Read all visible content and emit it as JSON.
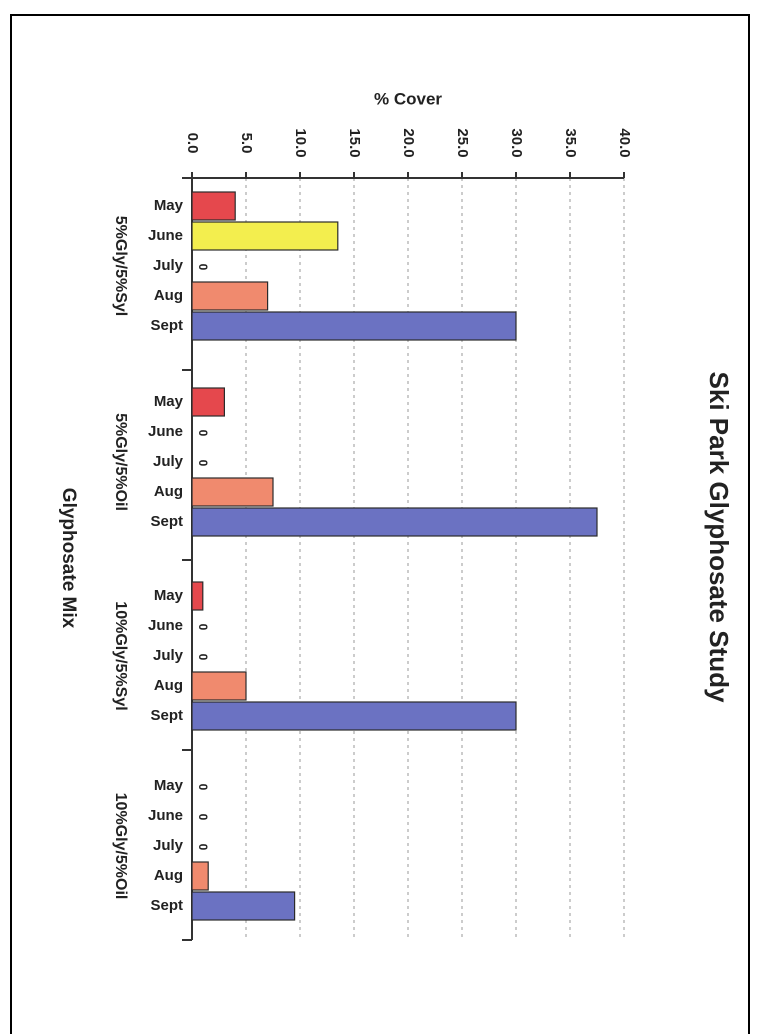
{
  "chart_data": {
    "type": "bar",
    "orientation": "horizontal",
    "title": "Ski Park Glyphosate Study",
    "xlabel": "Glyphosate Mix",
    "ylabel": "% Cover",
    "ylim": [
      0,
      40
    ],
    "ticks": [
      "0.0",
      "5.0",
      "10.0",
      "15.0",
      "20.0",
      "25.0",
      "30.0",
      "35.0",
      "40.0"
    ],
    "grid": true,
    "groups": [
      {
        "name": "5%Gly/5%Syl",
        "bars": [
          {
            "month": "May",
            "value": 4.0
          },
          {
            "month": "June",
            "value": 13.5
          },
          {
            "month": "July",
            "value": 0
          },
          {
            "month": "Aug",
            "value": 7.0
          },
          {
            "month": "Sept",
            "value": 30.0
          }
        ]
      },
      {
        "name": "5%Gly/5%Oil",
        "bars": [
          {
            "month": "May",
            "value": 3.0
          },
          {
            "month": "June",
            "value": 0
          },
          {
            "month": "July",
            "value": 0
          },
          {
            "month": "Aug",
            "value": 7.5
          },
          {
            "month": "Sept",
            "value": 37.5
          }
        ]
      },
      {
        "name": "10%Gly/5%Syl",
        "bars": [
          {
            "month": "May",
            "value": 1.0
          },
          {
            "month": "June",
            "value": 0
          },
          {
            "month": "July",
            "value": 0
          },
          {
            "month": "Aug",
            "value": 5.0
          },
          {
            "month": "Sept",
            "value": 30.0
          }
        ]
      },
      {
        "name": "10%Gly/5%Oil",
        "bars": [
          {
            "month": "May",
            "value": 0
          },
          {
            "month": "June",
            "value": 0
          },
          {
            "month": "July",
            "value": 0
          },
          {
            "month": "Aug",
            "value": 1.5
          },
          {
            "month": "Sept",
            "value": 9.5
          }
        ]
      }
    ],
    "zero_label": "0",
    "colors": {
      "May": "#e5484d",
      "June": "#f3ee4e",
      "July": "#f5b8a0",
      "Aug": "#f08a6e",
      "Sept": "#6b72c2"
    }
  }
}
